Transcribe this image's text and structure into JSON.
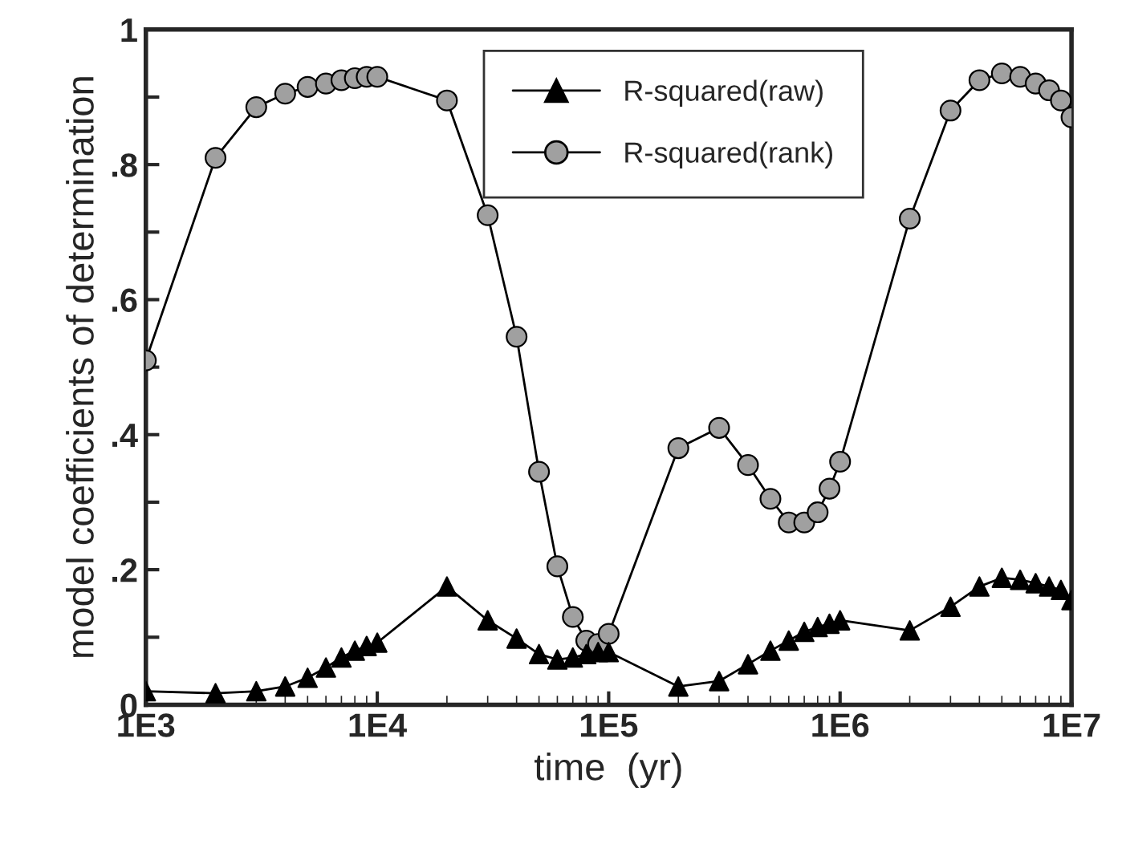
{
  "chart_data": {
    "type": "line",
    "xlabel": "time  (yr)",
    "ylabel": "model coefficients of determination",
    "x": [
      1000,
      2000,
      3000,
      4000,
      5000,
      6000,
      7000,
      8000,
      9000,
      10000,
      20000,
      30000,
      40000,
      50000,
      60000,
      70000,
      80000,
      90000,
      100000,
      200000,
      300000,
      400000,
      500000,
      600000,
      700000,
      800000,
      900000,
      1000000,
      2000000,
      3000000,
      4000000,
      5000000,
      6000000,
      7000000,
      8000000,
      9000000,
      10000000
    ],
    "series": [
      {
        "name": "R-squared(raw)",
        "color": "#000000",
        "marker": "triangle",
        "values": [
          0.02,
          0.017,
          0.02,
          0.027,
          0.04,
          0.055,
          0.07,
          0.08,
          0.087,
          0.092,
          0.175,
          0.125,
          0.098,
          0.075,
          0.067,
          0.07,
          0.075,
          0.078,
          0.078,
          0.027,
          0.035,
          0.06,
          0.08,
          0.095,
          0.108,
          0.115,
          0.12,
          0.125,
          0.11,
          0.145,
          0.175,
          0.188,
          0.185,
          0.18,
          0.175,
          0.17,
          0.155
        ]
      },
      {
        "name": "R-squared(rank)",
        "color": "#a0a0a0",
        "marker": "circle",
        "values": [
          0.51,
          0.81,
          0.885,
          0.905,
          0.915,
          0.92,
          0.925,
          0.928,
          0.93,
          0.93,
          0.895,
          0.725,
          0.545,
          0.345,
          0.205,
          0.13,
          0.095,
          0.09,
          0.105,
          0.38,
          0.41,
          0.355,
          0.305,
          0.27,
          0.27,
          0.285,
          0.32,
          0.36,
          0.72,
          0.88,
          0.925,
          0.935,
          0.93,
          0.92,
          0.91,
          0.895,
          0.87
        ]
      }
    ],
    "log": "x",
    "xlim": [
      1000,
      10000000
    ],
    "xticks": [
      {
        "value": 1000,
        "label": "1E3"
      },
      {
        "value": 10000,
        "label": "1E4"
      },
      {
        "value": 100000,
        "label": "1E5"
      },
      {
        "value": 1000000,
        "label": "1E6"
      },
      {
        "value": 10000000,
        "label": "1E7"
      }
    ],
    "ylim": [
      0,
      1
    ],
    "yticks": [
      0,
      {
        "value": 0.1,
        "label": null
      },
      {
        "value": 0.2,
        "label": ".2"
      },
      {
        "value": 0.3,
        "label": null
      },
      {
        "value": 0.4,
        "label": ".4"
      },
      {
        "value": 0.5,
        "label": null
      },
      {
        "value": 0.6,
        "label": ".6"
      },
      {
        "value": 0.7,
        "label": null
      },
      {
        "value": 0.8,
        "label": ".8"
      },
      {
        "value": 0.9,
        "label": null
      },
      1
    ],
    "grid": false,
    "legend": "top",
    "line_style": "solid"
  }
}
